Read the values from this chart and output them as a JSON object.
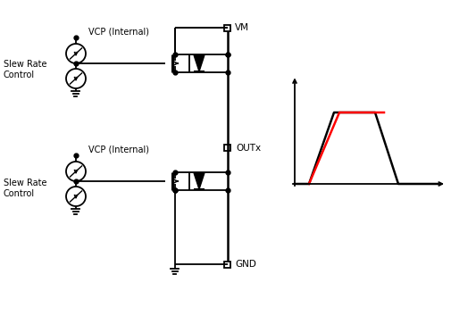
{
  "bg_color": "#ffffff",
  "line_color": "#000000",
  "red_color": "#ff0000",
  "fig_width": 5.06,
  "fig_height": 3.54,
  "labels": {
    "vcp_internal_1": "VCP (Internal)",
    "slew_rate_1": "Slew Rate\nControl",
    "vcp_internal_2": "VCP (Internal)",
    "slew_rate_2": "Slew Rate\nControl",
    "vm": "VM",
    "outx": "OUTx",
    "gnd": "GND"
  }
}
